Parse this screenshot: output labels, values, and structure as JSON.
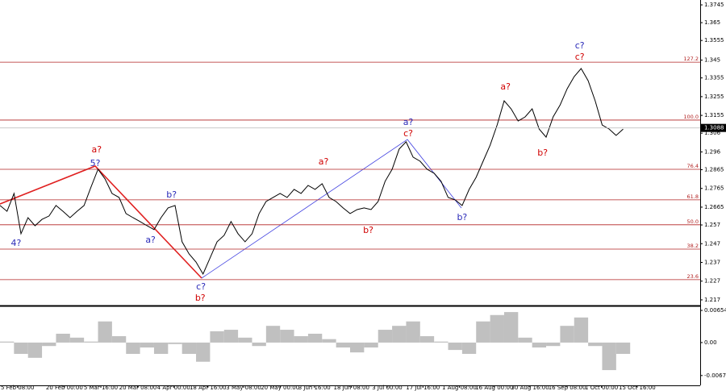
{
  "chart_data": [
    {
      "type": "line",
      "color": "#000000",
      "x": [
        0,
        1,
        2,
        3,
        4,
        5,
        6,
        7,
        8,
        9,
        10,
        11,
        12,
        13,
        14,
        15,
        16,
        17,
        18,
        19,
        20,
        21,
        22,
        23,
        24,
        25,
        26,
        27,
        28,
        29,
        30,
        31,
        32,
        33,
        34,
        35,
        36,
        37,
        38,
        39,
        40,
        41,
        42,
        43,
        44,
        45,
        46,
        47,
        48,
        49,
        50,
        51,
        52,
        53,
        54,
        55,
        56,
        57,
        58,
        59,
        60,
        61,
        62,
        63,
        64,
        65,
        66,
        67,
        68,
        69,
        70,
        71,
        72,
        73,
        74,
        75,
        76,
        77,
        78,
        79,
        80,
        81,
        82,
        83,
        84,
        85,
        86,
        87,
        88,
        89
      ],
      "values": [
        1.2674,
        1.2643,
        1.2738,
        1.2523,
        1.2609,
        1.2566,
        1.26,
        1.2618,
        1.2674,
        1.2643,
        1.2609,
        1.2643,
        1.2674,
        1.2772,
        1.2867,
        1.2816,
        1.2738,
        1.2717,
        1.2631,
        1.2609,
        1.2588,
        1.2566,
        1.2545,
        1.2609,
        1.2661,
        1.2674,
        1.248,
        1.2415,
        1.2372,
        1.2308,
        1.2394,
        1.248,
        1.2514,
        1.2588,
        1.2523,
        1.248,
        1.2523,
        1.2631,
        1.2695,
        1.2717,
        1.2738,
        1.2717,
        1.276,
        1.2738,
        1.2781,
        1.276,
        1.279,
        1.2717,
        1.2695,
        1.2661,
        1.2631,
        1.2652,
        1.2661,
        1.2652,
        1.2695,
        1.2803,
        1.2867,
        1.2975,
        1.3014,
        1.2932,
        1.291,
        1.2867,
        1.2846,
        1.2803,
        1.2717,
        1.2704,
        1.2674,
        1.276,
        1.2824,
        1.291,
        1.2996,
        1.3104,
        1.3233,
        1.319,
        1.3125,
        1.3147,
        1.319,
        1.3082,
        1.3039,
        1.3147,
        1.3211,
        1.3297,
        1.3362,
        1.3405,
        1.334,
        1.3233,
        1.3104,
        1.3082,
        1.3048,
        1.3082
      ],
      "xlim": [
        0,
        100
      ],
      "ylim": [
        1.2144,
        1.3771
      ],
      "yticks": [
        1.3745,
        1.365,
        1.3555,
        1.345,
        1.3355,
        1.3255,
        1.3155,
        1.306,
        1.296,
        1.2865,
        1.2765,
        1.2665,
        1.257,
        1.247,
        1.237,
        1.227,
        1.217
      ],
      "current_price": 1.3088,
      "level_color": "#b22222",
      "levels": [
        {
          "ratio": "127.2",
          "price": 1.3439
        },
        {
          "ratio": "100.0",
          "price": 1.313
        },
        {
          "ratio": "76.4",
          "price": 1.2867
        },
        {
          "ratio": "61.8",
          "price": 1.2704
        },
        {
          "ratio": "50.0",
          "price": 1.2571
        },
        {
          "ratio": "38.2",
          "price": 1.2441
        },
        {
          "ratio": "23.6",
          "price": 1.2278
        }
      ],
      "annotations": [
        {
          "text": "a?",
          "x": 13.8,
          "y": 1.297,
          "color": "#d00000"
        },
        {
          "text": "5?",
          "x": 13.6,
          "y": 1.2897,
          "color": "#2a2ab8"
        },
        {
          "text": "4?",
          "x": 2.3,
          "y": 1.2471,
          "color": "#2a2ab8"
        },
        {
          "text": "a?",
          "x": 21.5,
          "y": 1.2488,
          "color": "#2a2ab8"
        },
        {
          "text": "b?",
          "x": 24.5,
          "y": 1.273,
          "color": "#2a2ab8"
        },
        {
          "text": "c?",
          "x": 28.7,
          "y": 1.2239,
          "color": "#2a2ab8"
        },
        {
          "text": "b?",
          "x": 28.6,
          "y": 1.2179,
          "color": "#d00000"
        },
        {
          "text": "a?",
          "x": 46.2,
          "y": 1.2906,
          "color": "#d00000"
        },
        {
          "text": "b?",
          "x": 52.6,
          "y": 1.254,
          "color": "#d00000"
        },
        {
          "text": "a?",
          "x": 58.3,
          "y": 1.3117,
          "color": "#2a2ab8"
        },
        {
          "text": "c?",
          "x": 58.3,
          "y": 1.3057,
          "color": "#d00000"
        },
        {
          "text": "b?",
          "x": 66.0,
          "y": 1.2609,
          "color": "#2a2ab8"
        },
        {
          "text": "a?",
          "x": 72.2,
          "y": 1.3306,
          "color": "#d00000"
        },
        {
          "text": "b?",
          "x": 77.5,
          "y": 1.2953,
          "color": "#d00000"
        },
        {
          "text": "c?",
          "x": 82.8,
          "y": 1.3526,
          "color": "#2a2ab8"
        },
        {
          "text": "c?",
          "x": 82.8,
          "y": 1.3465,
          "color": "#d00000"
        }
      ]
    },
    {
      "type": "bar",
      "color": "#c0c0c0",
      "x": [
        0,
        2,
        4,
        6,
        8,
        10,
        12,
        14,
        16,
        18,
        20,
        22,
        24,
        26,
        28,
        30,
        32,
        34,
        36,
        38,
        40,
        42,
        44,
        46,
        48,
        50,
        52,
        54,
        56,
        58,
        60,
        62,
        64,
        66,
        68,
        70,
        72,
        74,
        76,
        78,
        80,
        82,
        84,
        86,
        88
      ],
      "values": [
        0.0002,
        -0.0023,
        -0.0031,
        -0.0007,
        0.0018,
        0.001,
        0.0002,
        0.0043,
        0.0013,
        -0.0023,
        -0.001,
        -0.0023,
        -0.0003,
        -0.0023,
        -0.0039,
        0.0023,
        0.0026,
        0.001,
        -0.0007,
        0.0034,
        0.0026,
        0.0013,
        0.0018,
        0.0007,
        -0.001,
        -0.002,
        -0.001,
        0.0026,
        0.0034,
        0.0043,
        0.0013,
        0.0002,
        -0.0015,
        -0.0023,
        0.0043,
        0.0056,
        0.0062,
        0.001,
        -0.001,
        -0.0007,
        0.0034,
        0.0051,
        -0.0007,
        -0.0056,
        -0.0023
      ],
      "xlim": [
        0,
        100
      ],
      "ylim": [
        -0.0087,
        0.0072
      ],
      "yticks": [
        0.00654,
        {
          "value": 0,
          "label": "0.00"
        },
        -0.0067
      ],
      "xticks": [
        {
          "value": 2.5,
          "label": "5 Feb 08:00"
        },
        {
          "value": 9.2,
          "label": "20 Feb 00:00"
        },
        {
          "value": 14.4,
          "label": "5 Mar 16:00"
        },
        {
          "value": 19.7,
          "label": "20 Mar 08:00"
        },
        {
          "value": 24.8,
          "label": "4 Apr 00:00"
        },
        {
          "value": 29.7,
          "label": "18 Apr 16:00"
        },
        {
          "value": 34.8,
          "label": "3 May 08:00"
        },
        {
          "value": 40.0,
          "label": "20 May 00:00"
        },
        {
          "value": 44.9,
          "label": "3 Jun 16:00"
        },
        {
          "value": 50.2,
          "label": "18 Jun 08:00"
        },
        {
          "value": 55.3,
          "label": "3 Jul 00:00"
        },
        {
          "value": 60.4,
          "label": "17 Jul 16:00"
        },
        {
          "value": 65.6,
          "label": "1 Aug 08:00"
        },
        {
          "value": 70.6,
          "label": "16 Aug 00:00"
        },
        {
          "value": 75.7,
          "label": "30 Aug 16:00"
        },
        {
          "value": 81.0,
          "label": "16 Sep 08:00"
        },
        {
          "value": 85.9,
          "label": "1 Oct 00:00"
        },
        {
          "value": 91.0,
          "label": "15 Oct 16:00"
        }
      ]
    }
  ]
}
